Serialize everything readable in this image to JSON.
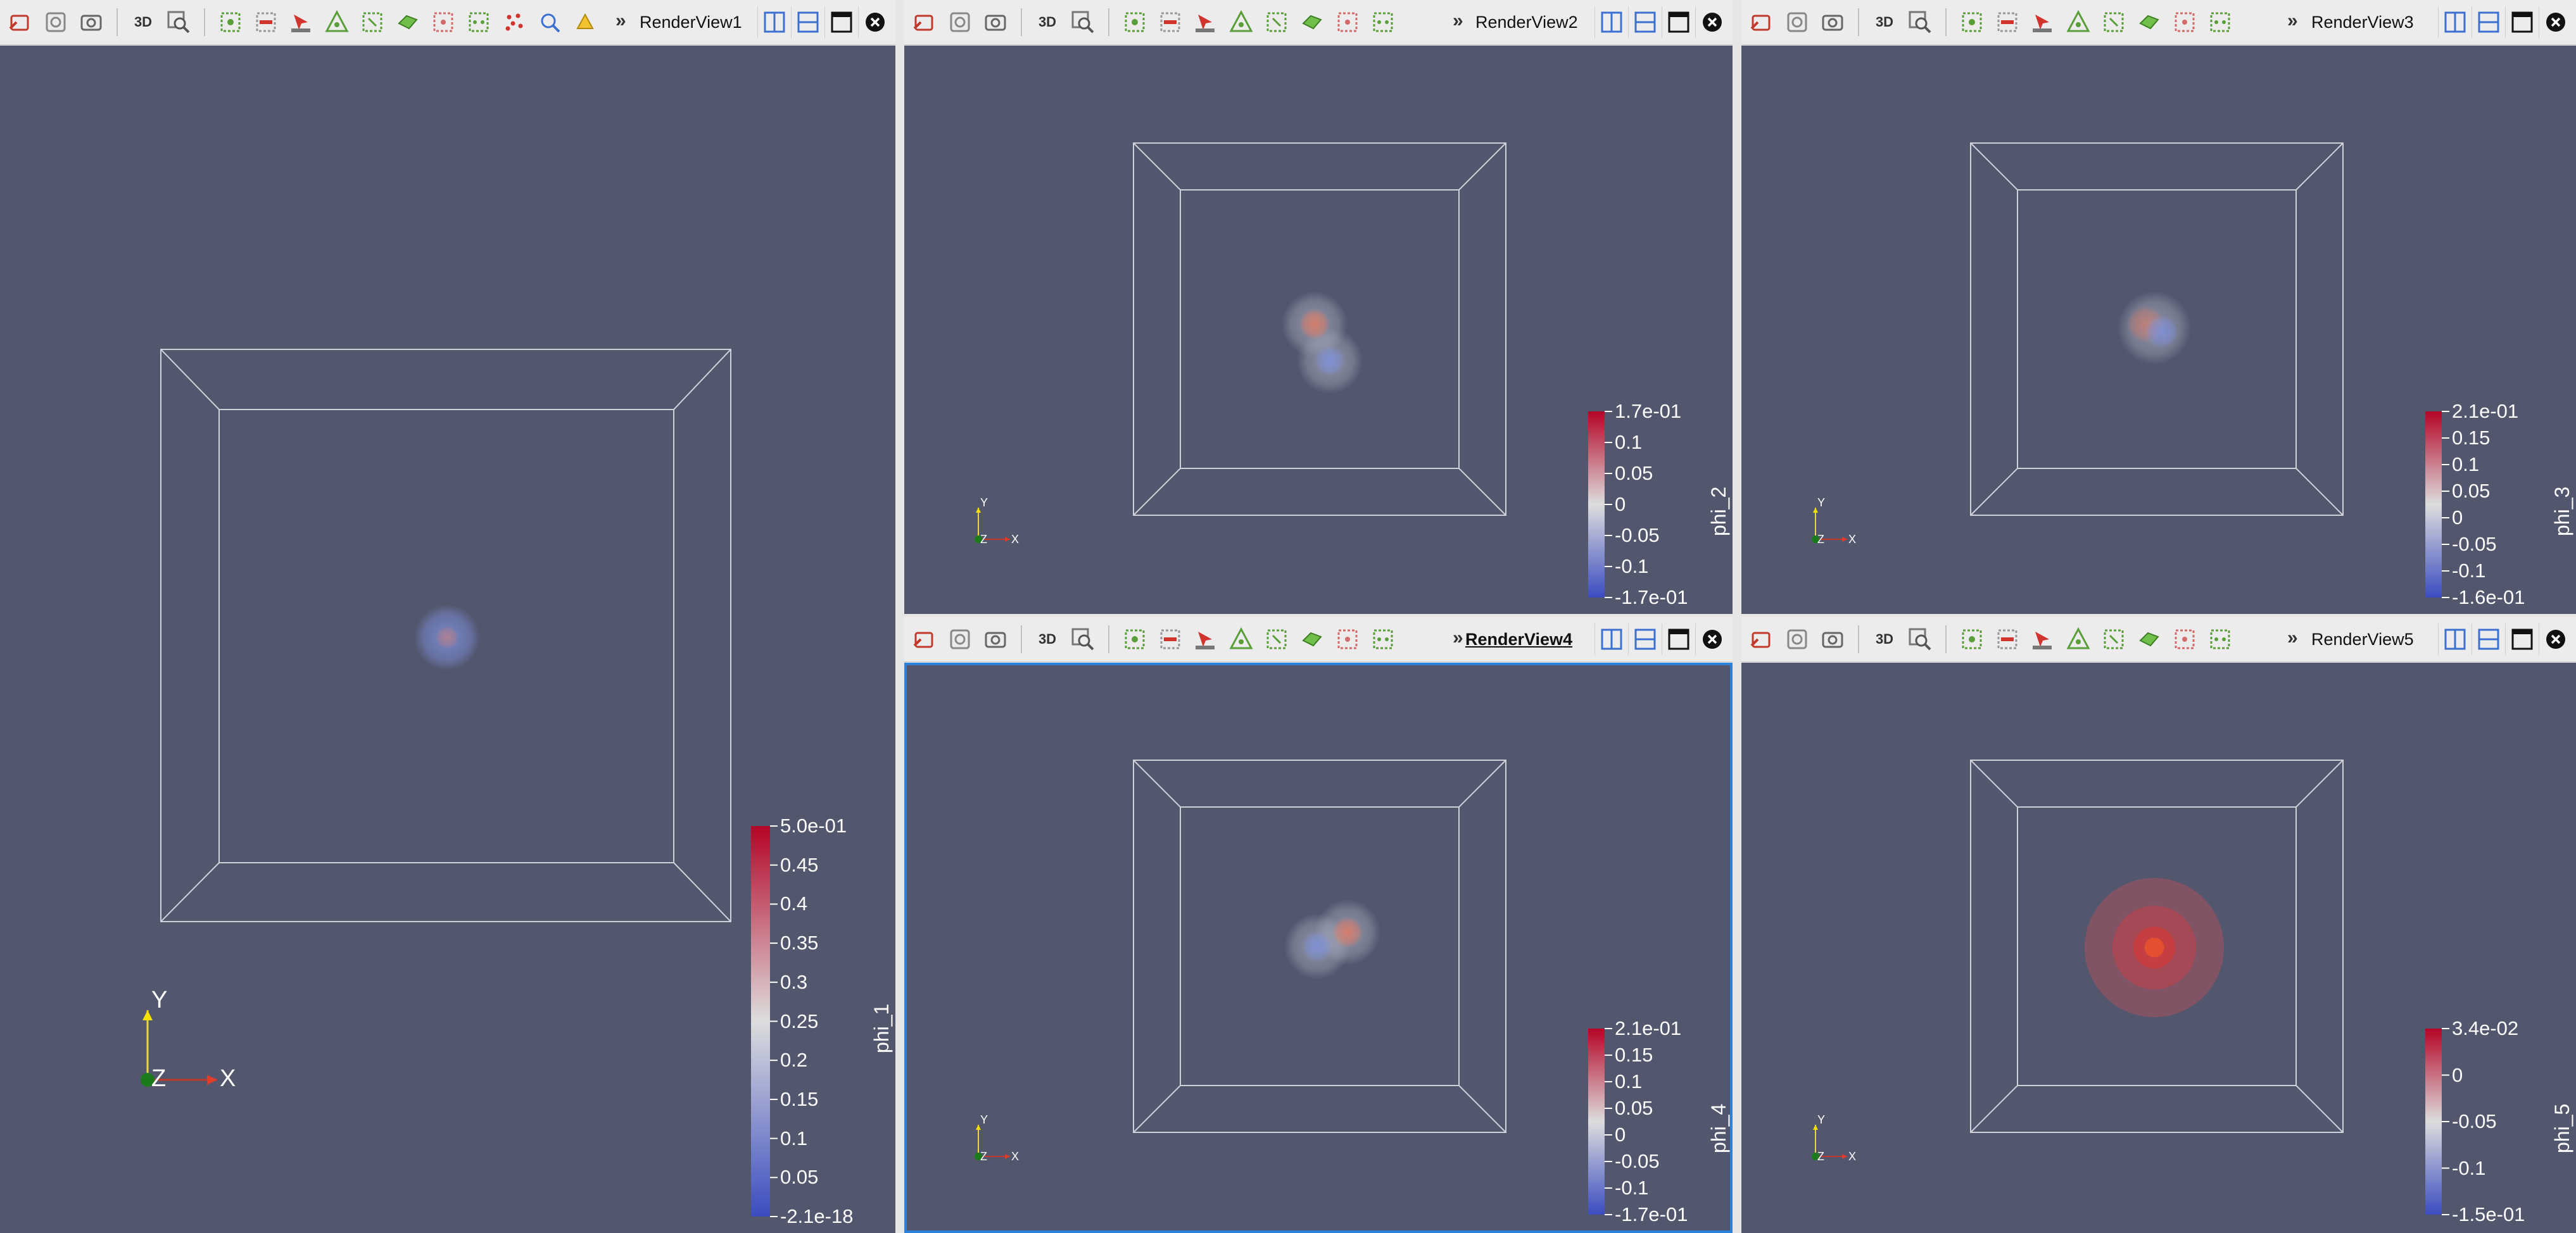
{
  "toolbar": {
    "three_d_label": "3D",
    "more_label": "»",
    "icons": [
      "reset-camera",
      "zoom-to-data",
      "capture-screenshot",
      "3d-toggle",
      "zoom-to-box",
      "select-points",
      "deselect",
      "interactive-select",
      "select-cells-polygon",
      "select-frustum",
      "select-block",
      "grow-selection",
      "shrink-selection",
      "hover-points",
      "hover-cells"
    ]
  },
  "views": [
    {
      "title": "RenderView1",
      "active": false,
      "array": "phi_1",
      "labels": [
        "5.0e-01",
        "0.45",
        "0.4",
        "0.35",
        "0.3",
        "0.25",
        "0.2",
        "0.15",
        "0.1",
        "0.05",
        "-2.1e-18"
      ],
      "axis_labels": {
        "y": "Y",
        "z": "Z",
        "x": "X"
      }
    },
    {
      "title": "RenderView2",
      "active": false,
      "array": "phi_2",
      "labels": [
        "1.7e-01",
        "0.1",
        "0.05",
        "0",
        "-0.05",
        "-0.1",
        "-1.7e-01"
      ],
      "axis_labels": {
        "y": "Y",
        "z": "Z",
        "x": "X"
      }
    },
    {
      "title": "RenderView3",
      "active": false,
      "array": "phi_3",
      "labels": [
        "2.1e-01",
        "0.15",
        "0.1",
        "0.05",
        "0",
        "-0.05",
        "-0.1",
        "-1.6e-01"
      ],
      "axis_labels": {
        "y": "Y",
        "z": "Z",
        "x": "X"
      }
    },
    {
      "title": "RenderView4",
      "active": true,
      "array": "phi_4",
      "labels": [
        "2.1e-01",
        "0.15",
        "0.1",
        "0.05",
        "0",
        "-0.05",
        "-0.1",
        "-1.7e-01"
      ],
      "axis_labels": {
        "y": "Y",
        "z": "Z",
        "x": "X"
      }
    },
    {
      "title": "RenderView5",
      "active": false,
      "array": "phi_5",
      "labels": [
        "3.4e-02",
        "0",
        "-0.05",
        "-0.1",
        "-1.5e-01"
      ],
      "axis_labels": {
        "y": "Y",
        "z": "Z",
        "x": "X"
      }
    }
  ],
  "colors": {
    "background": "#52576e",
    "box_edge": "#cfd1d8",
    "map_high": "#b40426",
    "map_mid": "#dddddd",
    "map_low": "#3b4cc0",
    "active_border": "#2a82da"
  }
}
